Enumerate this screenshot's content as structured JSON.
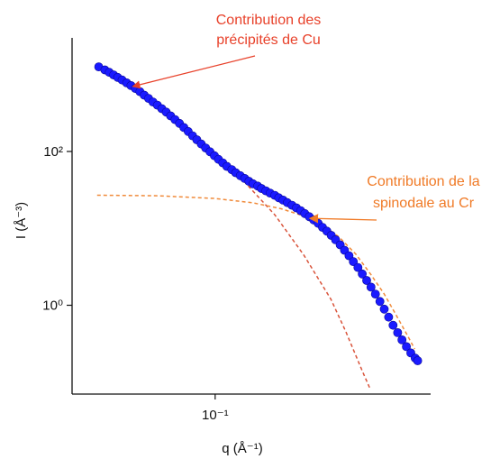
{
  "chart_data": {
    "type": "scatter",
    "title": "",
    "xscale": "log",
    "yscale": "log",
    "xlabel": "q (Å⁻¹)",
    "ylabel": "I (Å⁻³)",
    "xlim": [
      0.028,
      0.68
    ],
    "ylim": [
      0.07,
      3000
    ],
    "grid": false,
    "x_ticks": [
      {
        "value": 0.1,
        "label": "10⁻¹"
      }
    ],
    "y_ticks": [
      {
        "value": 100,
        "label": "10²"
      },
      {
        "value": 1,
        "label": "10⁰"
      }
    ],
    "series": [
      {
        "marker": "circle",
        "color": "#1a1aff",
        "points": [
          [
            0.0355,
            1260
          ],
          [
            0.0375,
            1150
          ],
          [
            0.039,
            1070
          ],
          [
            0.0405,
            990
          ],
          [
            0.042,
            920
          ],
          [
            0.0437,
            850
          ],
          [
            0.0455,
            780
          ],
          [
            0.0473,
            720
          ],
          [
            0.0492,
            660
          ],
          [
            0.0512,
            600
          ],
          [
            0.0532,
            540
          ],
          [
            0.0553,
            490
          ],
          [
            0.0575,
            440
          ],
          [
            0.0598,
            400
          ],
          [
            0.0622,
            360
          ],
          [
            0.0647,
            325
          ],
          [
            0.0673,
            290
          ],
          [
            0.07,
            260
          ],
          [
            0.0728,
            232
          ],
          [
            0.0757,
            205
          ],
          [
            0.0787,
            182
          ],
          [
            0.0818,
            160
          ],
          [
            0.085,
            142
          ],
          [
            0.0884,
            125
          ],
          [
            0.0919,
            111
          ],
          [
            0.0955,
            99
          ],
          [
            0.0993,
            88
          ],
          [
            0.103,
            79
          ],
          [
            0.107,
            71
          ],
          [
            0.111,
            64
          ],
          [
            0.116,
            58
          ],
          [
            0.12,
            53
          ],
          [
            0.125,
            48.5
          ],
          [
            0.13,
            44.5
          ],
          [
            0.135,
            41
          ],
          [
            0.14,
            38
          ],
          [
            0.146,
            35.5
          ],
          [
            0.151,
            33
          ],
          [
            0.157,
            30.8
          ],
          [
            0.163,
            28.8
          ],
          [
            0.17,
            26.9
          ],
          [
            0.176,
            25
          ],
          [
            0.183,
            23.3
          ],
          [
            0.19,
            21.6
          ],
          [
            0.198,
            20
          ],
          [
            0.206,
            18.5
          ],
          [
            0.214,
            17
          ],
          [
            0.222,
            15.6
          ],
          [
            0.231,
            14.2
          ],
          [
            0.24,
            12.9
          ],
          [
            0.25,
            11.6
          ],
          [
            0.26,
            10.3
          ],
          [
            0.27,
            9.2
          ],
          [
            0.281,
            8.1
          ],
          [
            0.292,
            7.1
          ],
          [
            0.304,
            6.1
          ],
          [
            0.316,
            5.2
          ],
          [
            0.329,
            4.4
          ],
          [
            0.342,
            3.7
          ],
          [
            0.356,
            3.1
          ],
          [
            0.37,
            2.55
          ],
          [
            0.385,
            2.1
          ],
          [
            0.4,
            1.72
          ],
          [
            0.416,
            1.4
          ],
          [
            0.433,
            1.12
          ],
          [
            0.45,
            0.89
          ],
          [
            0.468,
            0.7
          ],
          [
            0.487,
            0.55
          ],
          [
            0.507,
            0.44
          ],
          [
            0.527,
            0.355
          ],
          [
            0.548,
            0.29
          ],
          [
            0.57,
            0.24
          ],
          [
            0.593,
            0.205
          ],
          [
            0.606,
            0.19
          ]
        ]
      }
    ],
    "fits": [
      {
        "style": "dashed",
        "color": "#d9533a",
        "points": [
          [
            0.086,
            150
          ],
          [
            0.1,
            88
          ],
          [
            0.13,
            40
          ],
          [
            0.17,
            15
          ],
          [
            0.22,
            4.5
          ],
          [
            0.28,
            1.2
          ],
          [
            0.32,
            0.45
          ],
          [
            0.37,
            0.14
          ],
          [
            0.395,
            0.085
          ]
        ]
      },
      {
        "style": "dashed",
        "color": "#f08a3a",
        "points": [
          [
            0.035,
            27
          ],
          [
            0.06,
            26.5
          ],
          [
            0.1,
            24.5
          ],
          [
            0.14,
            21.5
          ],
          [
            0.18,
            18
          ],
          [
            0.22,
            14.5
          ],
          [
            0.26,
            11
          ],
          [
            0.3,
            7.8
          ],
          [
            0.35,
            4.6
          ],
          [
            0.4,
            2.5
          ],
          [
            0.45,
            1.4
          ],
          [
            0.5,
            0.75
          ],
          [
            0.55,
            0.42
          ],
          [
            0.59,
            0.27
          ]
        ]
      }
    ],
    "annotations": [
      {
        "lines": [
          "Contribution des",
          "précipités de Cu"
        ],
        "color": "#e8412a",
        "arrow_x": 0.048,
        "arrow_y": 700
      },
      {
        "lines": [
          "Contribution de la",
          "spinodale au Cr"
        ],
        "color": "#f07a26",
        "arrow_x": 0.232,
        "arrow_y": 13.5
      }
    ]
  }
}
